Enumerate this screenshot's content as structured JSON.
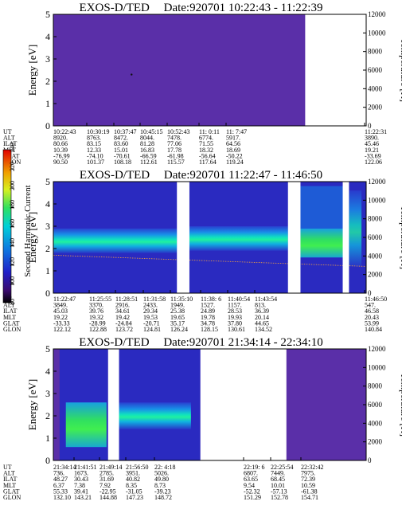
{
  "chart_data": [
    {
      "type": "heatmap",
      "title": "EXOS-D/TED",
      "date": "Date:920701",
      "time_range": "10:22:43 - 11:22:39",
      "ylabel": "Energy [eV]",
      "ylim": [
        0,
        5
      ],
      "yticks": [
        "0",
        "1",
        "2",
        "3",
        "4",
        "5"
      ],
      "y2label": "Temperature [K]",
      "y2lim": [
        0,
        12000
      ],
      "y2ticks": [
        "0",
        "2000",
        "4000",
        "6000",
        "8000",
        "10000",
        "12000"
      ],
      "data_end_fraction": 0.805,
      "gaps": [],
      "ephemeris": {
        "row_labels": [
          "UT",
          "ALT",
          "ILAT",
          "MLT",
          "GLAT",
          "GLON"
        ],
        "columns": [
          [
            "10:22:43",
            "8920.",
            "80.66",
            "10.39",
            "-76.99",
            "90.50"
          ],
          [
            "10:30:19",
            "8763.",
            "83.15",
            "12.33",
            "-74.10",
            "101.37"
          ],
          [
            "10:37:47",
            "8472.",
            "83.60",
            "15.01",
            "-70.61",
            "108.18"
          ],
          [
            "10:45:15",
            "8044.",
            "81.28",
            "16.83",
            "-66.59",
            "112.61"
          ],
          [
            "10:52:43",
            "7478.",
            "77.06",
            "17.78",
            "-61.98",
            "115.57"
          ],
          [
            "11: 0:11",
            "6774.",
            "71.55",
            "18.32",
            "-56.64",
            "117.64"
          ],
          [
            "11: 7:47",
            "5917.",
            "64.56",
            "18.69",
            "-50.22",
            "119.24"
          ],
          [
            "11:22:31",
            "3890.",
            "45.46",
            "19.21",
            "-33.69",
            "122.06"
          ]
        ]
      }
    },
    {
      "type": "heatmap",
      "title": "EXOS-D/TED",
      "date": "Date:920701",
      "time_range": "11:22:47 - 11:46:50",
      "ylabel": "Energy [eV]",
      "ylim": [
        0,
        5
      ],
      "yticks": [
        "0",
        "1",
        "2",
        "3",
        "4",
        "5"
      ],
      "y2label": "Temperature [K]",
      "y2lim": [
        0,
        12000
      ],
      "y2ticks": [
        "0",
        "2000",
        "4000",
        "6000",
        "8000",
        "10000",
        "12000"
      ],
      "colorbar": {
        "label": "Second Harmonic Current",
        "range": [
          80,
          240
        ],
        "ticks": [
          "80",
          "100",
          "120",
          "140",
          "160",
          "180",
          "200",
          "220",
          "240"
        ]
      },
      "gaps": [
        [
          0.395,
          0.435
        ],
        [
          0.75,
          0.79
        ],
        [
          0.925,
          0.945
        ]
      ],
      "ephemeris": {
        "row_labels": [
          "UT",
          "ALT",
          "ILAT",
          "MLT",
          "GLAT",
          "GLON"
        ],
        "columns": [
          [
            "11:22:47",
            "3849.",
            "45.03",
            "19.22",
            "-33.33",
            "122.12"
          ],
          [
            "11:25:55",
            "3370.",
            "39.76",
            "19.32",
            "-28.99",
            "122.88"
          ],
          [
            "11:28:51",
            "2916.",
            "34.61",
            "19.42",
            "-24.84",
            "123.72"
          ],
          [
            "11:31:58",
            "2433.",
            "29.34",
            "19.53",
            "-20.71",
            "124.81"
          ],
          [
            "11:35:10",
            "1949.",
            "25.38",
            "19.65",
            "35.17",
            "126.24"
          ],
          [
            "11:38: 6",
            "1527.",
            "24.89",
            "19.78",
            "34.78",
            "128.15"
          ],
          [
            "11:40:54",
            "1157.",
            "28.53",
            "19.93",
            "37.80",
            "130.61"
          ],
          [
            "11:43:54",
            "813.",
            "36.39",
            "20.14",
            "44.65",
            "134.52"
          ],
          [
            "11:46:50",
            "547.",
            "46.58",
            "20.43",
            "53.99",
            "140.84"
          ]
        ]
      }
    },
    {
      "type": "heatmap",
      "title": "EXOS-D/TED",
      "date": "Date:920701",
      "time_range": "21:34:14 - 22:34:10",
      "ylabel": "Energy [eV]",
      "ylim": [
        0,
        5
      ],
      "yticks": [
        "0",
        "1",
        "2",
        "3",
        "4",
        "5"
      ],
      "y2label": "Temperature [K]",
      "y2lim": [
        0,
        12000
      ],
      "y2ticks": [
        "0",
        "2000",
        "4000",
        "6000",
        "8000",
        "10000",
        "12000"
      ],
      "gaps": [
        [
          0.175,
          0.21
        ],
        [
          0.47,
          0.745
        ]
      ],
      "ephemeris": {
        "row_labels": [
          "UT",
          "ALT",
          "ILAT",
          "MLT",
          "GLAT",
          "GLON"
        ],
        "columns": [
          [
            "21:34:14",
            "736.",
            "48.27",
            "6.37",
            "55.33",
            "132.10"
          ],
          [
            "21:41:51",
            "1673.",
            "30.43",
            "7.38",
            "39.41",
            "143.21"
          ],
          [
            "21:49:14",
            "2785.",
            "31.69",
            "7.92",
            "-22.95",
            "144.88"
          ],
          [
            "21:56:50",
            "3951.",
            "40.82",
            "8.35",
            "-31.05",
            "147.23"
          ],
          [
            "22: 4:18",
            "5026.",
            "49.80",
            "8.73",
            "-39.23",
            "148.72"
          ],
          [
            "22:19: 6",
            "6807.",
            "63.65",
            "9.54",
            "-52.32",
            "151.29"
          ],
          [
            "22:25:54",
            "7449.",
            "68.45",
            "10.01",
            "-57.13",
            "152.78"
          ],
          [
            "22:32:42",
            "7975.",
            "72.39",
            "10.59",
            "-61.38",
            "154.71"
          ]
        ]
      }
    }
  ]
}
